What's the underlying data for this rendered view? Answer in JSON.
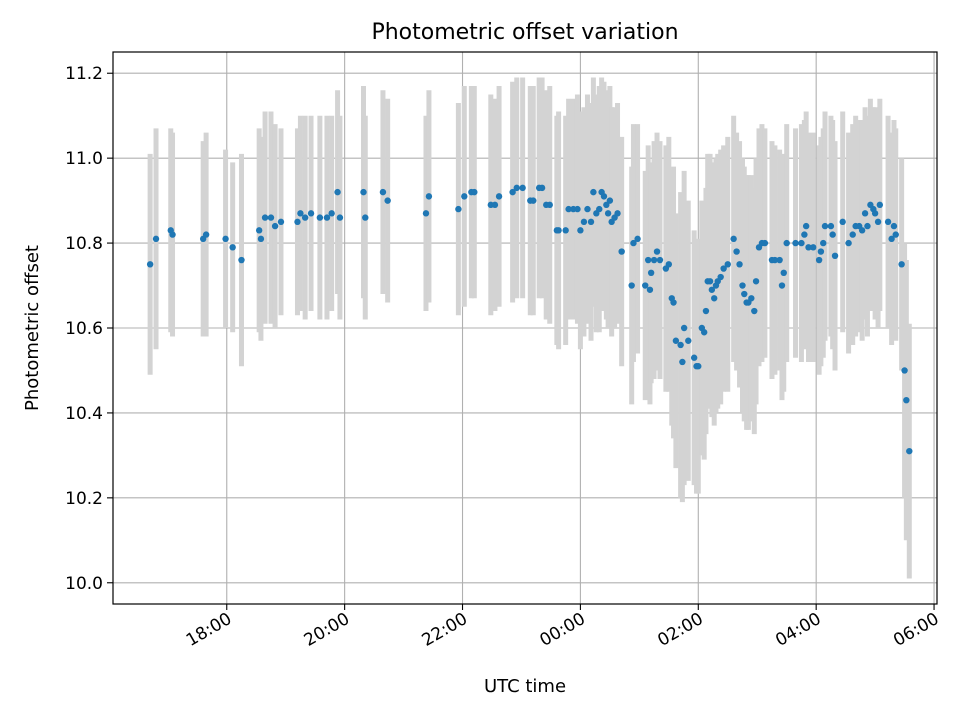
{
  "chart_data": {
    "type": "scatter",
    "title": "Photometric offset variation",
    "xlabel": "UTC time",
    "ylabel": "Photometric offset",
    "x_tick_labels": [
      "18:00",
      "20:00",
      "22:00",
      "00:00",
      "02:00",
      "04:00",
      "06:00"
    ],
    "y_tick_labels": [
      "10.0",
      "10.2",
      "10.4",
      "10.6",
      "10.8",
      "11.0",
      "11.2"
    ],
    "y_ticks": [
      10.0,
      10.2,
      10.4,
      10.6,
      10.8,
      11.0,
      11.2
    ],
    "ylim": [
      9.95,
      11.25
    ],
    "xlim_hours": [
      16.07,
      30.05
    ],
    "x_ticks_hours": [
      18,
      20,
      22,
      24,
      26,
      28,
      30
    ],
    "grid": true,
    "colors": {
      "point": "#1f77b4",
      "errorbar": "#d3d3d3",
      "grid": "#b0b0b0"
    },
    "x_unit": "hours after 00:00 UTC of first night (values > 24 fall after midnight)",
    "series": [
      {
        "points": [
          {
            "x": 16.7,
            "y": 10.75,
            "err": 0.26
          },
          {
            "x": 16.8,
            "y": 10.81,
            "err": 0.26
          },
          {
            "x": 17.05,
            "y": 10.83,
            "err": 0.24
          },
          {
            "x": 17.08,
            "y": 10.82,
            "err": 0.24
          },
          {
            "x": 17.6,
            "y": 10.81,
            "err": 0.23
          },
          {
            "x": 17.65,
            "y": 10.82,
            "err": 0.24
          },
          {
            "x": 17.98,
            "y": 10.81,
            "err": 0.21
          },
          {
            "x": 18.1,
            "y": 10.79,
            "err": 0.2
          },
          {
            "x": 18.25,
            "y": 10.76,
            "err": 0.25
          },
          {
            "x": 18.55,
            "y": 10.83,
            "err": 0.24
          },
          {
            "x": 18.58,
            "y": 10.81,
            "err": 0.24
          },
          {
            "x": 18.65,
            "y": 10.86,
            "err": 0.25
          },
          {
            "x": 18.75,
            "y": 10.86,
            "err": 0.25
          },
          {
            "x": 18.82,
            "y": 10.84,
            "err": 0.24
          },
          {
            "x": 18.92,
            "y": 10.85,
            "err": 0.22
          },
          {
            "x": 19.2,
            "y": 10.85,
            "err": 0.22
          },
          {
            "x": 19.25,
            "y": 10.87,
            "err": 0.23
          },
          {
            "x": 19.33,
            "y": 10.86,
            "err": 0.24
          },
          {
            "x": 19.43,
            "y": 10.87,
            "err": 0.23
          },
          {
            "x": 19.58,
            "y": 10.86,
            "err": 0.24
          },
          {
            "x": 19.7,
            "y": 10.86,
            "err": 0.24
          },
          {
            "x": 19.78,
            "y": 10.87,
            "err": 0.23
          },
          {
            "x": 19.88,
            "y": 10.92,
            "err": 0.24
          },
          {
            "x": 19.92,
            "y": 10.86,
            "err": 0.24
          },
          {
            "x": 20.32,
            "y": 10.92,
            "err": 0.25
          },
          {
            "x": 20.35,
            "y": 10.86,
            "err": 0.24
          },
          {
            "x": 20.65,
            "y": 10.92,
            "err": 0.24
          },
          {
            "x": 20.73,
            "y": 10.9,
            "err": 0.24
          },
          {
            "x": 21.38,
            "y": 10.87,
            "err": 0.23
          },
          {
            "x": 21.43,
            "y": 10.91,
            "err": 0.25
          },
          {
            "x": 21.93,
            "y": 10.88,
            "err": 0.25
          },
          {
            "x": 22.03,
            "y": 10.91,
            "err": 0.26
          },
          {
            "x": 22.15,
            "y": 10.92,
            "err": 0.25
          },
          {
            "x": 22.2,
            "y": 10.92,
            "err": 0.25
          },
          {
            "x": 22.48,
            "y": 10.89,
            "err": 0.26
          },
          {
            "x": 22.55,
            "y": 10.89,
            "err": 0.25
          },
          {
            "x": 22.62,
            "y": 10.91,
            "err": 0.26
          },
          {
            "x": 22.85,
            "y": 10.92,
            "err": 0.26
          },
          {
            "x": 22.92,
            "y": 10.93,
            "err": 0.26
          },
          {
            "x": 23.02,
            "y": 10.93,
            "err": 0.26
          },
          {
            "x": 23.15,
            "y": 10.9,
            "err": 0.27
          },
          {
            "x": 23.2,
            "y": 10.9,
            "err": 0.27
          },
          {
            "x": 23.3,
            "y": 10.93,
            "err": 0.26
          },
          {
            "x": 23.35,
            "y": 10.93,
            "err": 0.26
          },
          {
            "x": 23.42,
            "y": 10.89,
            "err": 0.27
          },
          {
            "x": 23.48,
            "y": 10.89,
            "err": 0.28
          },
          {
            "x": 23.6,
            "y": 10.83,
            "err": 0.27
          },
          {
            "x": 23.63,
            "y": 10.83,
            "err": 0.28
          },
          {
            "x": 23.75,
            "y": 10.83,
            "err": 0.27
          },
          {
            "x": 23.8,
            "y": 10.88,
            "err": 0.26
          },
          {
            "x": 23.88,
            "y": 10.88,
            "err": 0.26
          },
          {
            "x": 23.95,
            "y": 10.88,
            "err": 0.27
          },
          {
            "x": 24.0,
            "y": 10.83,
            "err": 0.28
          },
          {
            "x": 24.06,
            "y": 10.85,
            "err": 0.27
          },
          {
            "x": 24.12,
            "y": 10.88,
            "err": 0.27
          },
          {
            "x": 24.18,
            "y": 10.85,
            "err": 0.28
          },
          {
            "x": 24.22,
            "y": 10.92,
            "err": 0.27
          },
          {
            "x": 24.27,
            "y": 10.87,
            "err": 0.28
          },
          {
            "x": 24.32,
            "y": 10.88,
            "err": 0.29
          },
          {
            "x": 24.36,
            "y": 10.92,
            "err": 0.27
          },
          {
            "x": 24.4,
            "y": 10.91,
            "err": 0.27
          },
          {
            "x": 24.44,
            "y": 10.89,
            "err": 0.27
          },
          {
            "x": 24.47,
            "y": 10.87,
            "err": 0.27
          },
          {
            "x": 24.5,
            "y": 10.9,
            "err": 0.27
          },
          {
            "x": 24.53,
            "y": 10.85,
            "err": 0.27
          },
          {
            "x": 24.58,
            "y": 10.86,
            "err": 0.26
          },
          {
            "x": 24.63,
            "y": 10.87,
            "err": 0.26
          },
          {
            "x": 24.7,
            "y": 10.78,
            "err": 0.27
          },
          {
            "x": 24.87,
            "y": 10.7,
            "err": 0.28
          },
          {
            "x": 24.9,
            "y": 10.8,
            "err": 0.28
          },
          {
            "x": 24.97,
            "y": 10.81,
            "err": 0.27
          },
          {
            "x": 25.1,
            "y": 10.7,
            "err": 0.27
          },
          {
            "x": 25.15,
            "y": 10.76,
            "err": 0.27
          },
          {
            "x": 25.18,
            "y": 10.69,
            "err": 0.27
          },
          {
            "x": 25.2,
            "y": 10.73,
            "err": 0.26
          },
          {
            "x": 25.25,
            "y": 10.76,
            "err": 0.28
          },
          {
            "x": 25.3,
            "y": 10.78,
            "err": 0.28
          },
          {
            "x": 25.35,
            "y": 10.76,
            "err": 0.28
          },
          {
            "x": 25.45,
            "y": 10.74,
            "err": 0.29
          },
          {
            "x": 25.5,
            "y": 10.75,
            "err": 0.3
          },
          {
            "x": 25.55,
            "y": 10.67,
            "err": 0.3
          },
          {
            "x": 25.58,
            "y": 10.66,
            "err": 0.32
          },
          {
            "x": 25.62,
            "y": 10.57,
            "err": 0.3
          },
          {
            "x": 25.7,
            "y": 10.56,
            "err": 0.36
          },
          {
            "x": 25.73,
            "y": 10.52,
            "err": 0.33
          },
          {
            "x": 25.76,
            "y": 10.6,
            "err": 0.37
          },
          {
            "x": 25.83,
            "y": 10.57,
            "err": 0.33
          },
          {
            "x": 25.93,
            "y": 10.53,
            "err": 0.3
          },
          {
            "x": 25.97,
            "y": 10.51,
            "err": 0.3
          },
          {
            "x": 26.0,
            "y": 10.51,
            "err": 0.3
          },
          {
            "x": 26.06,
            "y": 10.6,
            "err": 0.3
          },
          {
            "x": 26.1,
            "y": 10.59,
            "err": 0.3
          },
          {
            "x": 26.13,
            "y": 10.64,
            "err": 0.29
          },
          {
            "x": 26.16,
            "y": 10.71,
            "err": 0.3
          },
          {
            "x": 26.2,
            "y": 10.71,
            "err": 0.3
          },
          {
            "x": 26.23,
            "y": 10.69,
            "err": 0.3
          },
          {
            "x": 26.27,
            "y": 10.67,
            "err": 0.3
          },
          {
            "x": 26.3,
            "y": 10.7,
            "err": 0.3
          },
          {
            "x": 26.33,
            "y": 10.71,
            "err": 0.3
          },
          {
            "x": 26.38,
            "y": 10.72,
            "err": 0.3
          },
          {
            "x": 26.43,
            "y": 10.74,
            "err": 0.29
          },
          {
            "x": 26.5,
            "y": 10.75,
            "err": 0.3
          },
          {
            "x": 26.6,
            "y": 10.81,
            "err": 0.29
          },
          {
            "x": 26.65,
            "y": 10.78,
            "err": 0.28
          },
          {
            "x": 26.7,
            "y": 10.75,
            "err": 0.29
          },
          {
            "x": 26.75,
            "y": 10.7,
            "err": 0.3
          },
          {
            "x": 26.78,
            "y": 10.68,
            "err": 0.3
          },
          {
            "x": 26.82,
            "y": 10.66,
            "err": 0.3
          },
          {
            "x": 26.85,
            "y": 10.66,
            "err": 0.3
          },
          {
            "x": 26.9,
            "y": 10.67,
            "err": 0.29
          },
          {
            "x": 26.95,
            "y": 10.64,
            "err": 0.29
          },
          {
            "x": 26.98,
            "y": 10.71,
            "err": 0.29
          },
          {
            "x": 27.03,
            "y": 10.79,
            "err": 0.28
          },
          {
            "x": 27.08,
            "y": 10.8,
            "err": 0.28
          },
          {
            "x": 27.13,
            "y": 10.8,
            "err": 0.27
          },
          {
            "x": 27.25,
            "y": 10.76,
            "err": 0.28
          },
          {
            "x": 27.3,
            "y": 10.76,
            "err": 0.27
          },
          {
            "x": 27.38,
            "y": 10.76,
            "err": 0.26
          },
          {
            "x": 27.42,
            "y": 10.7,
            "err": 0.27
          },
          {
            "x": 27.45,
            "y": 10.73,
            "err": 0.28
          },
          {
            "x": 27.5,
            "y": 10.8,
            "err": 0.28
          },
          {
            "x": 27.65,
            "y": 10.8,
            "err": 0.27
          },
          {
            "x": 27.75,
            "y": 10.8,
            "err": 0.28
          },
          {
            "x": 27.8,
            "y": 10.82,
            "err": 0.27
          },
          {
            "x": 27.83,
            "y": 10.84,
            "err": 0.27
          },
          {
            "x": 27.87,
            "y": 10.79,
            "err": 0.27
          },
          {
            "x": 27.95,
            "y": 10.79,
            "err": 0.27
          },
          {
            "x": 28.05,
            "y": 10.76,
            "err": 0.27
          },
          {
            "x": 28.08,
            "y": 10.78,
            "err": 0.27
          },
          {
            "x": 28.12,
            "y": 10.8,
            "err": 0.27
          },
          {
            "x": 28.15,
            "y": 10.84,
            "err": 0.27
          },
          {
            "x": 28.25,
            "y": 10.84,
            "err": 0.26
          },
          {
            "x": 28.28,
            "y": 10.82,
            "err": 0.27
          },
          {
            "x": 28.32,
            "y": 10.77,
            "err": 0.27
          },
          {
            "x": 28.45,
            "y": 10.85,
            "err": 0.26
          },
          {
            "x": 28.55,
            "y": 10.8,
            "err": 0.26
          },
          {
            "x": 28.62,
            "y": 10.82,
            "err": 0.26
          },
          {
            "x": 28.67,
            "y": 10.84,
            "err": 0.26
          },
          {
            "x": 28.73,
            "y": 10.84,
            "err": 0.25
          },
          {
            "x": 28.78,
            "y": 10.83,
            "err": 0.26
          },
          {
            "x": 28.83,
            "y": 10.87,
            "err": 0.25
          },
          {
            "x": 28.87,
            "y": 10.84,
            "err": 0.26
          },
          {
            "x": 28.92,
            "y": 10.89,
            "err": 0.25
          },
          {
            "x": 28.97,
            "y": 10.88,
            "err": 0.24
          },
          {
            "x": 29.0,
            "y": 10.87,
            "err": 0.25
          },
          {
            "x": 29.05,
            "y": 10.85,
            "err": 0.25
          },
          {
            "x": 29.08,
            "y": 10.89,
            "err": 0.25
          },
          {
            "x": 29.22,
            "y": 10.85,
            "err": 0.25
          },
          {
            "x": 29.28,
            "y": 10.81,
            "err": 0.25
          },
          {
            "x": 29.32,
            "y": 10.84,
            "err": 0.25
          },
          {
            "x": 29.35,
            "y": 10.82,
            "err": 0.25
          },
          {
            "x": 29.45,
            "y": 10.75,
            "err": 0.25
          },
          {
            "x": 29.5,
            "y": 10.5,
            "err": 0.3
          },
          {
            "x": 29.53,
            "y": 10.43,
            "err": 0.33
          },
          {
            "x": 29.58,
            "y": 10.31,
            "err": 0.3
          }
        ]
      }
    ]
  }
}
